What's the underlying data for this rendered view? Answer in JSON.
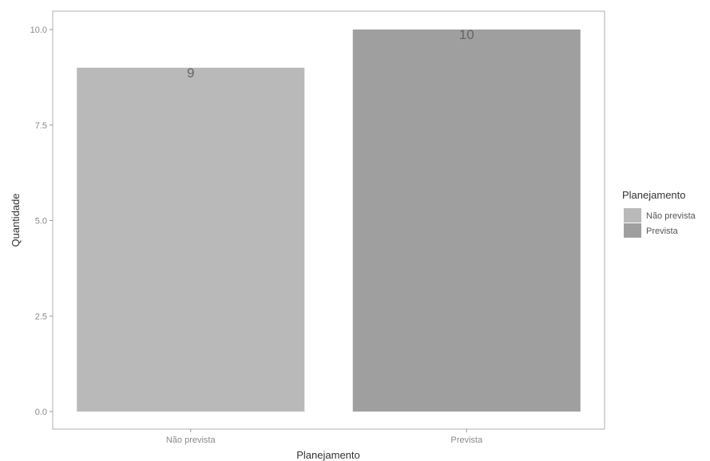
{
  "chart_data": {
    "type": "bar",
    "title": "",
    "xlabel": "Planejamento",
    "ylabel": "Quantidade",
    "categories": [
      "Não prevista",
      "Prevista"
    ],
    "values": [
      9,
      10
    ],
    "data_labels": [
      "9",
      "10"
    ],
    "ylim": [
      0,
      10.45
    ],
    "y_ticks": [
      0,
      2.5,
      5,
      7.5,
      10
    ],
    "y_tick_labels": [
      "0.0",
      "2.5",
      "5.0",
      "7.5",
      "10.0"
    ],
    "grid": false,
    "legend": {
      "title": "Planejamento",
      "position": "right",
      "entries": [
        "Não prevista",
        "Prevista"
      ]
    },
    "colors": [
      "#b9b9b9",
      "#9f9f9f"
    ]
  }
}
